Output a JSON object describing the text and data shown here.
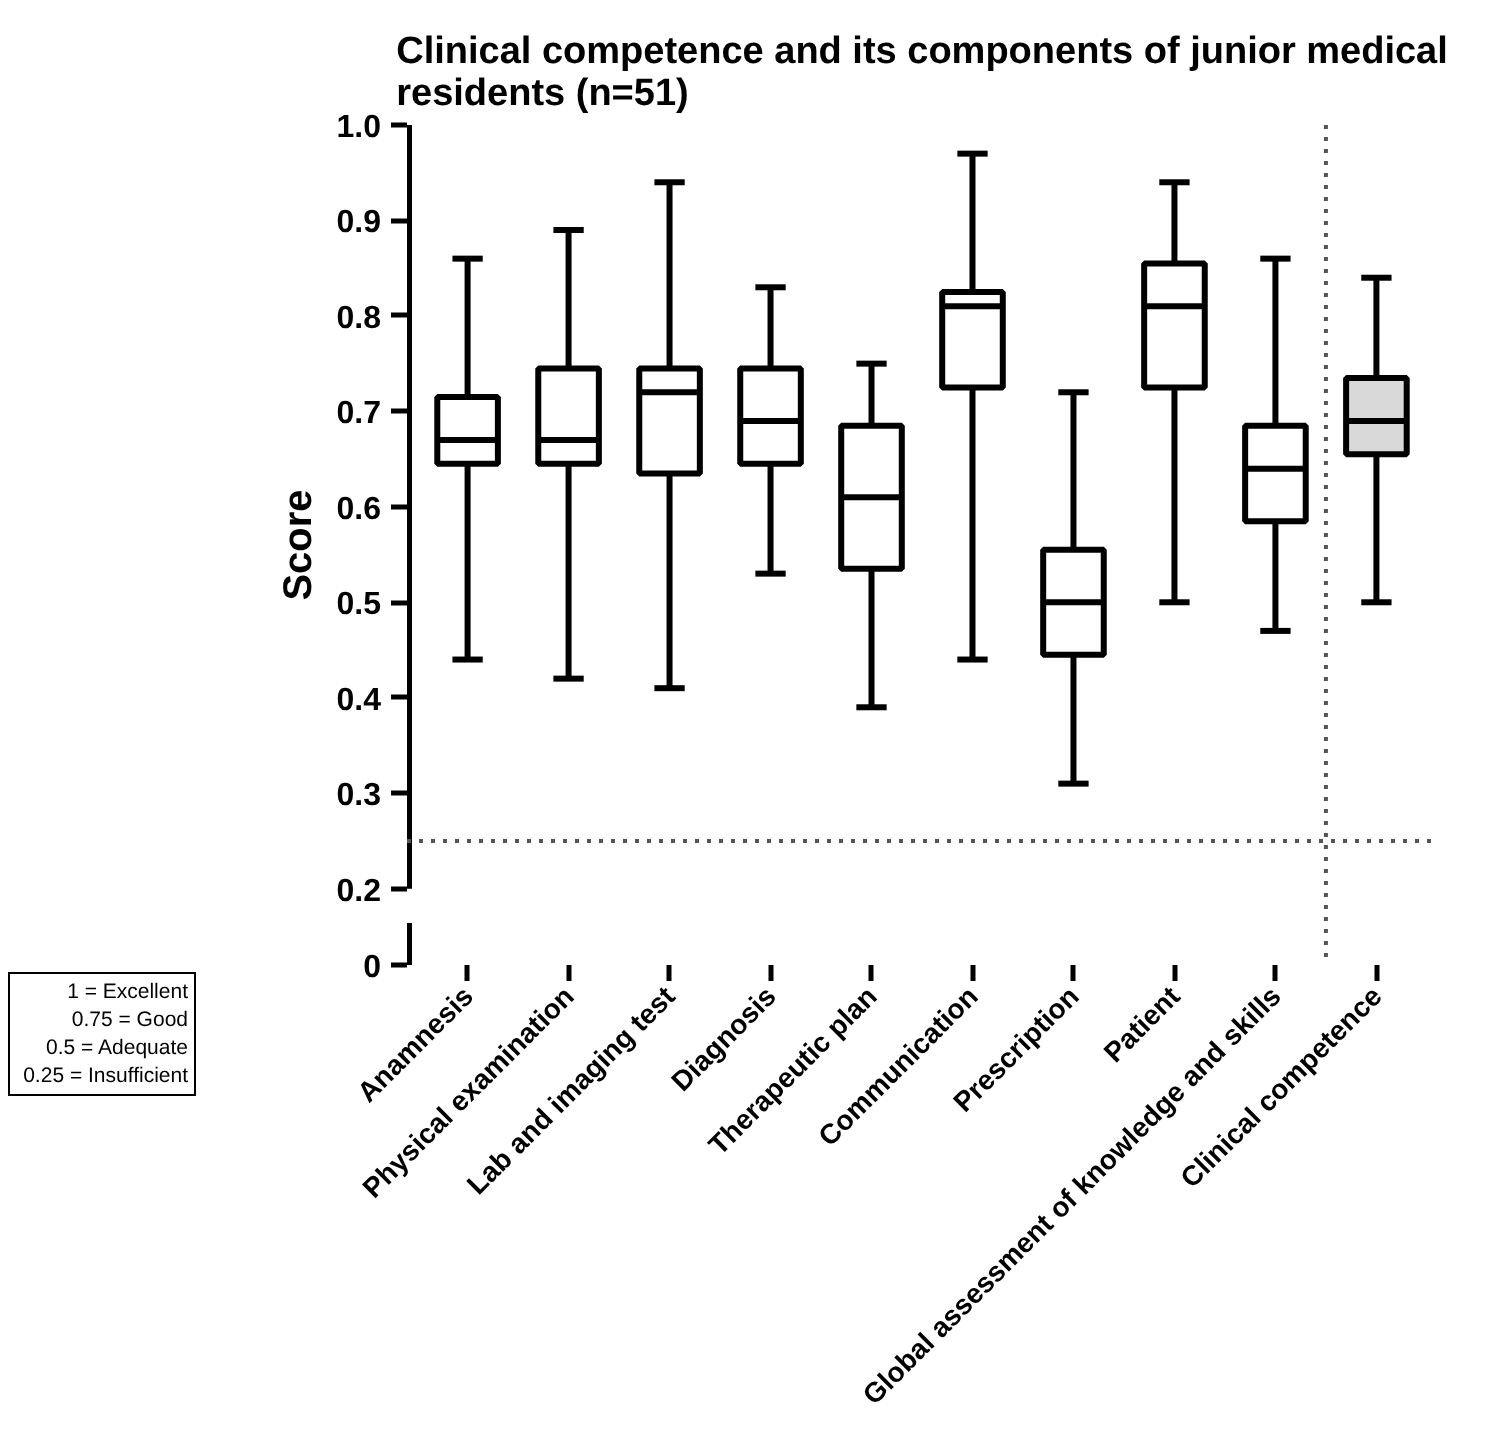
{
  "chart_data": {
    "type": "box",
    "title": "Clinical competence and its components of junior medical residents (n=51)",
    "ylabel": "Score",
    "categories": [
      "Anamnesis",
      "Physical examination",
      "Lab and imaging test",
      "Diagnosis",
      "Therapeutic plan",
      "Communication",
      "Prescription",
      "Patient",
      "Global assessment of knowledge and skills",
      "Clinical competence"
    ],
    "boxes": [
      {
        "low": 0.44,
        "q1": 0.645,
        "median": 0.67,
        "q3": 0.715,
        "high": 0.86
      },
      {
        "low": 0.42,
        "q1": 0.645,
        "median": 0.67,
        "q3": 0.745,
        "high": 0.89
      },
      {
        "low": 0.41,
        "q1": 0.635,
        "median": 0.72,
        "q3": 0.745,
        "high": 0.94
      },
      {
        "low": 0.53,
        "q1": 0.645,
        "median": 0.69,
        "q3": 0.745,
        "high": 0.83
      },
      {
        "low": 0.39,
        "q1": 0.535,
        "median": 0.61,
        "q3": 0.685,
        "high": 0.75
      },
      {
        "low": 0.44,
        "q1": 0.725,
        "median": 0.81,
        "q3": 0.825,
        "high": 0.97
      },
      {
        "low": 0.31,
        "q1": 0.445,
        "median": 0.5,
        "q3": 0.555,
        "high": 0.72
      },
      {
        "low": 0.5,
        "q1": 0.725,
        "median": 0.81,
        "q3": 0.855,
        "high": 0.94
      },
      {
        "low": 0.47,
        "q1": 0.585,
        "median": 0.64,
        "q3": 0.685,
        "high": 0.86
      },
      {
        "low": 0.5,
        "q1": 0.655,
        "median": 0.69,
        "q3": 0.735,
        "high": 0.84
      }
    ],
    "colors": [
      "#ffffff",
      "#ffffff",
      "#ffffff",
      "#ffffff",
      "#ffffff",
      "#ffffff",
      "#ffffff",
      "#ffffff",
      "#ffffff",
      "#d9d9d9"
    ],
    "ylim": [
      0.2,
      1.0
    ],
    "yticks": [
      0.2,
      0.3,
      0.4,
      0.5,
      0.6,
      0.7,
      0.8,
      0.9,
      {
        "value": 1.0,
        "label": "1.0"
      }
    ],
    "ref_lines": [
      {
        "axis": "y",
        "value": 0.25,
        "line_style": "dotted",
        "color": "#555555"
      }
    ],
    "annotations": [
      "0",
      "1 = Excellent",
      "0.75 = Good",
      "0.5 = Adequate",
      "0.25 = Insufficient"
    ]
  }
}
